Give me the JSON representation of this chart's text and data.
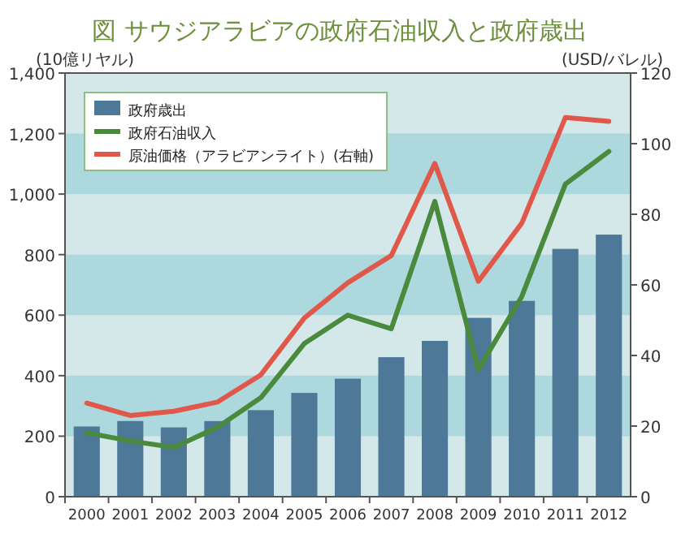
{
  "chart_data": {
    "type": "bar",
    "title": "図 サウジアラビアの政府石油収入と政府歳出",
    "ylabel": "(10億リヤル)",
    "y2label": "(USD/バレル)",
    "categories": [
      "2000",
      "2001",
      "2002",
      "2003",
      "2004",
      "2005",
      "2006",
      "2007",
      "2008",
      "2009",
      "2010",
      "2011",
      "2012"
    ],
    "series": [
      {
        "name": "政府歳出",
        "color": "#4d7898",
        "values": [
          232,
          250,
          229,
          250,
          286,
          343,
          390,
          461,
          515,
          591,
          647,
          819,
          866
        ]
      },
      {
        "name": "政府石油収入",
        "type": "line",
        "color": "#4a8a3c",
        "values": [
          211,
          184,
          163,
          229,
          327,
          506,
          600,
          555,
          976,
          420,
          662,
          1033,
          1141
        ]
      },
      {
        "name": "原油価格（アラビアンライト）(右軸)",
        "type": "line",
        "axis": "y2",
        "color": "#e0584a",
        "values": [
          26.5,
          23.0,
          24.2,
          26.8,
          34.5,
          50.6,
          60.6,
          68.3,
          94.4,
          61.0,
          77.5,
          107.4,
          106.3
        ]
      }
    ],
    "ylim": [
      0,
      1400
    ],
    "yticks": [
      0,
      {
        "value": 200,
        "label": "200"
      },
      {
        "value": 400,
        "label": "400"
      },
      {
        "value": 600,
        "label": "600"
      },
      {
        "value": 800,
        "label": "800"
      },
      {
        "value": 1000,
        "label": "1,000"
      },
      {
        "value": 1200,
        "label": "1,200"
      },
      {
        "value": 1400,
        "label": "1,400"
      }
    ],
    "y2lim": [
      0,
      120
    ],
    "y2ticks": [
      0,
      20,
      40,
      60,
      80,
      100,
      120
    ],
    "bands": [
      {
        "axis": "y",
        "from": 200,
        "to": 400,
        "color": "#acd8de"
      },
      {
        "axis": "y",
        "from": 600,
        "to": 800,
        "color": "#acd8de"
      },
      {
        "axis": "y",
        "from": 1000,
        "to": 1200,
        "color": "#acd8de"
      }
    ],
    "legend": "top left"
  }
}
